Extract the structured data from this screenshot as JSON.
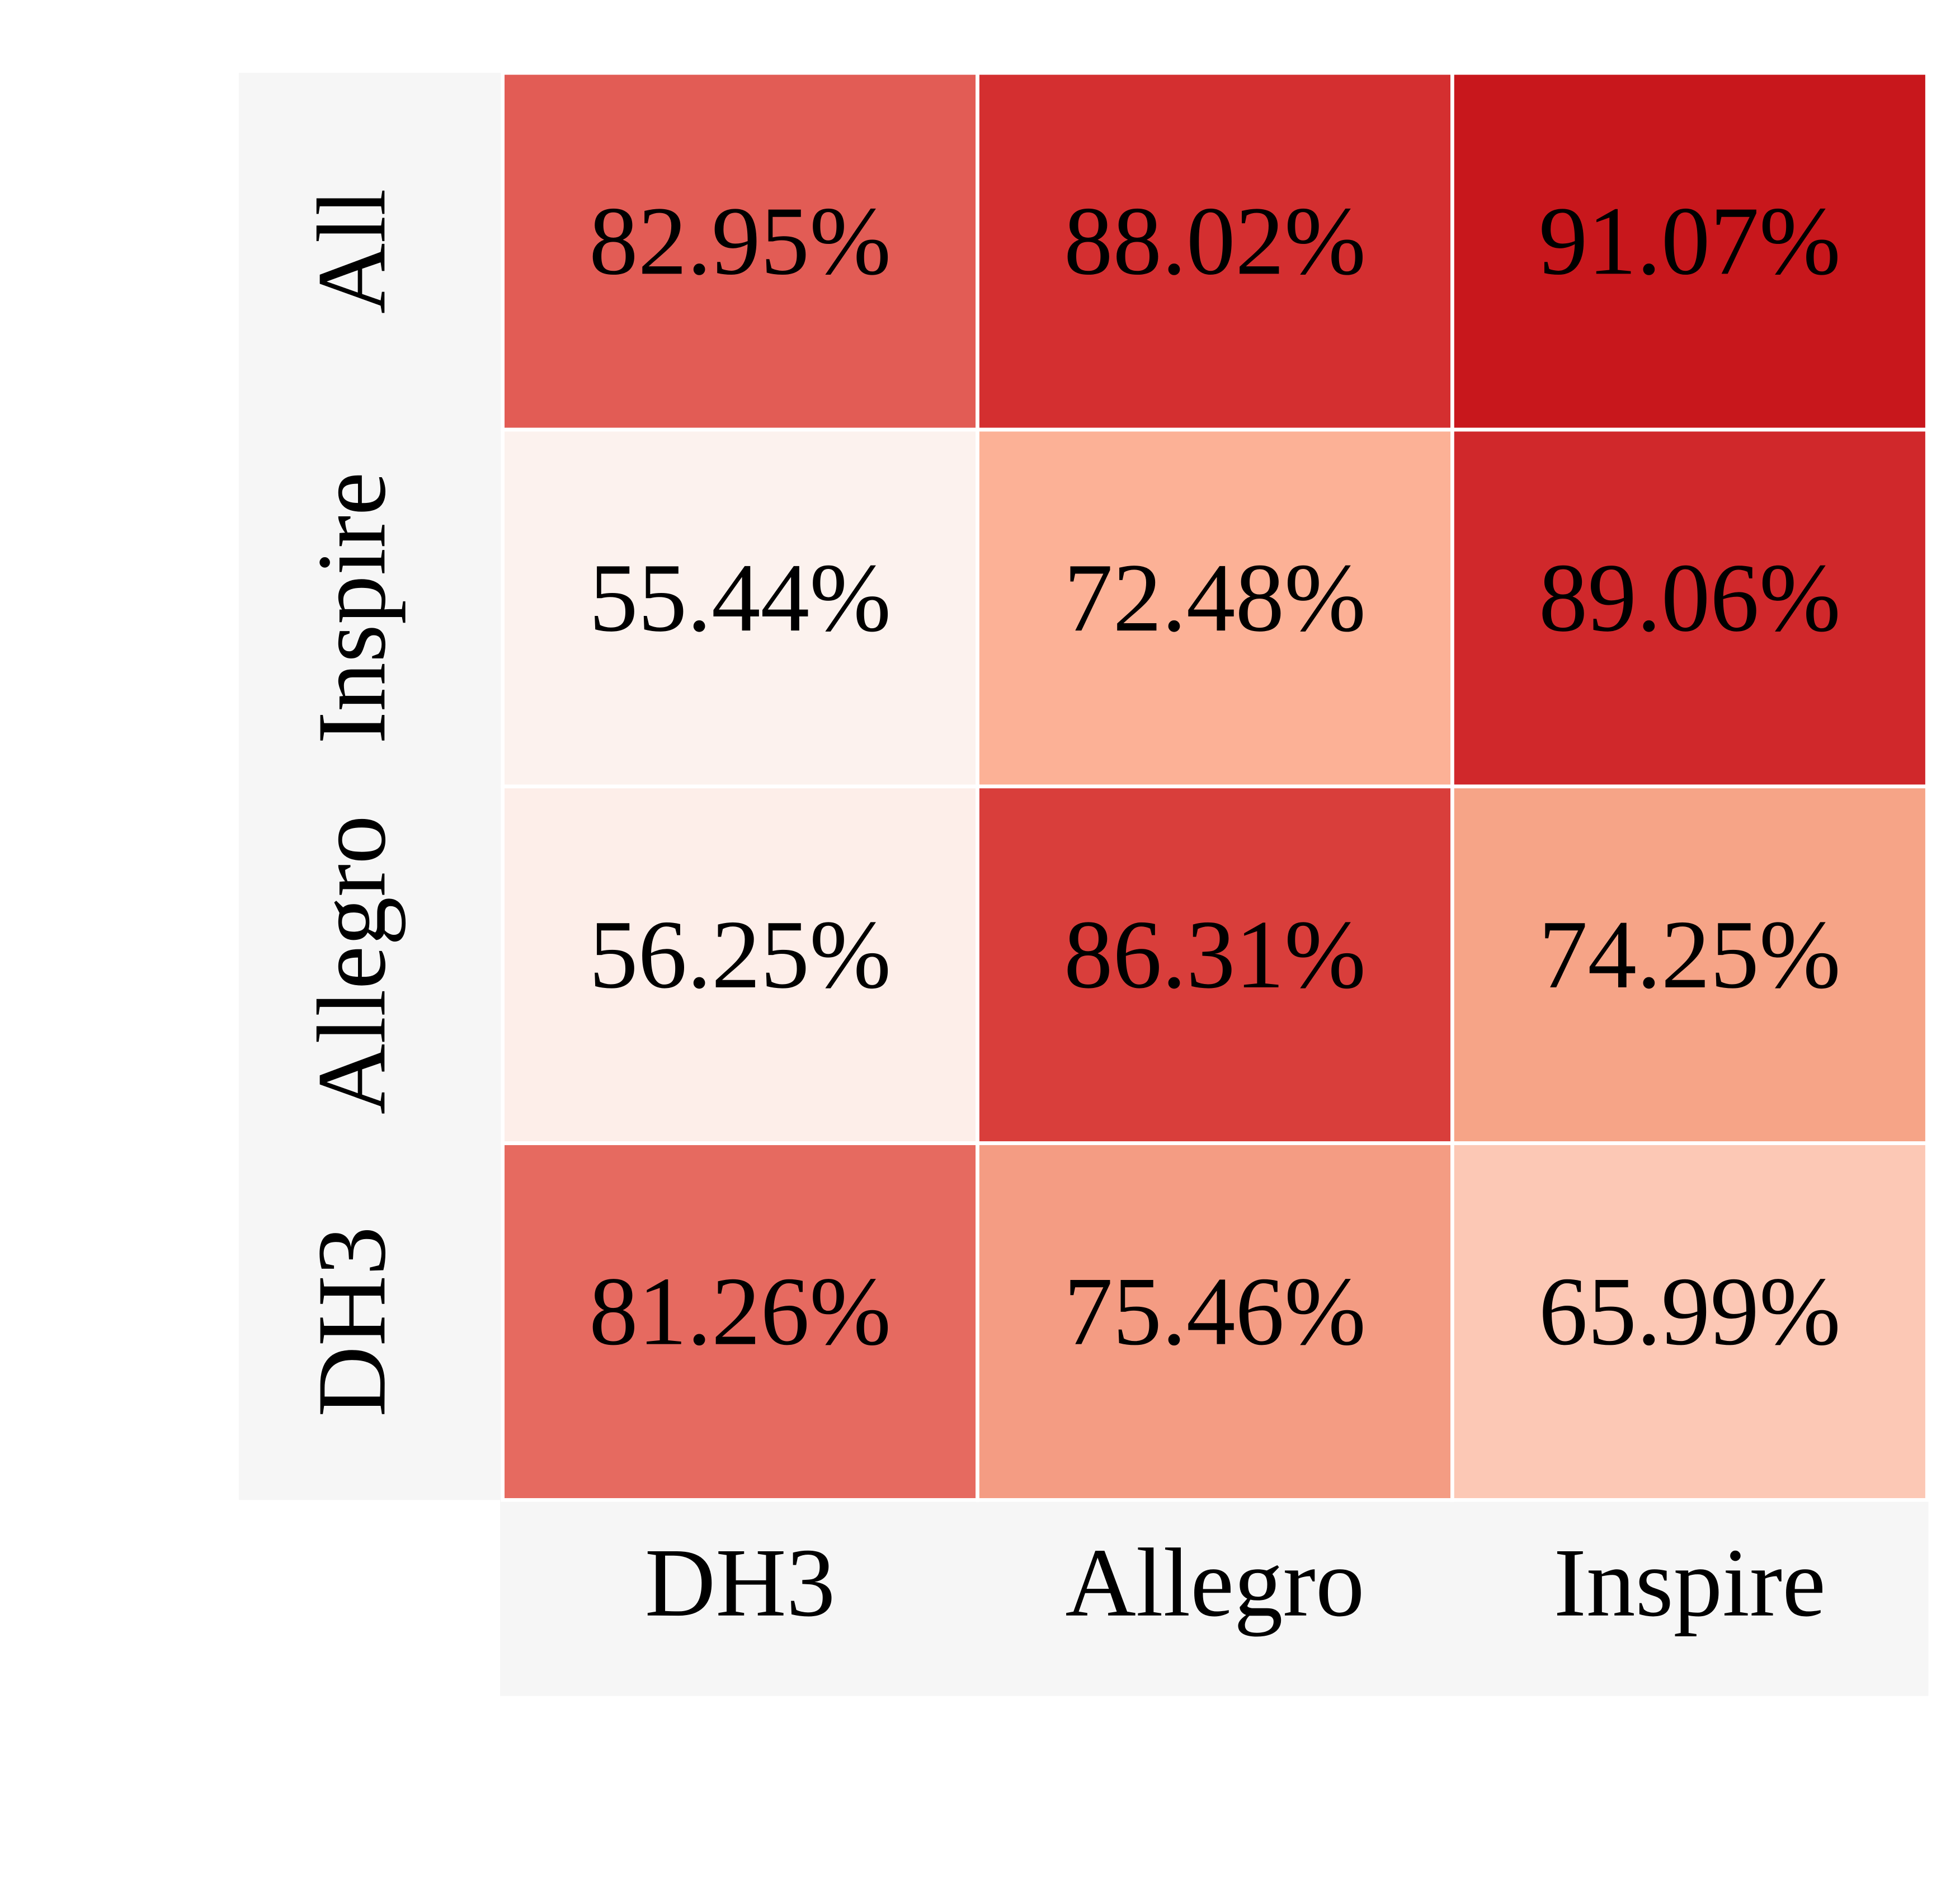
{
  "chart_data": {
    "type": "heatmap",
    "x_categories": [
      "DH3",
      "Allegro",
      "Inspire"
    ],
    "y_categories": [
      "All",
      "Inspire",
      "Allegro",
      "DH3"
    ],
    "values": [
      [
        82.95,
        88.02,
        91.07
      ],
      [
        55.44,
        72.48,
        89.06
      ],
      [
        56.25,
        86.31,
        74.25
      ],
      [
        81.26,
        75.46,
        65.99
      ]
    ],
    "value_labels": [
      [
        "82.95%",
        "88.02%",
        "91.07%"
      ],
      [
        "55.44%",
        "72.48%",
        "89.06%"
      ],
      [
        "56.25%",
        "86.31%",
        "74.25%"
      ],
      [
        "81.26%",
        "75.46%",
        "65.99%"
      ]
    ],
    "colors": [
      [
        "#e25c55",
        "#d42f30",
        "#c8171c"
      ],
      [
        "#fcf2ee",
        "#fcb196",
        "#d0282b"
      ],
      [
        "#fdeee9",
        "#d93e3b",
        "#f6a487"
      ],
      [
        "#e66a60",
        "#f49c83",
        "#fcc8b5"
      ]
    ],
    "colormap": "Reds"
  }
}
